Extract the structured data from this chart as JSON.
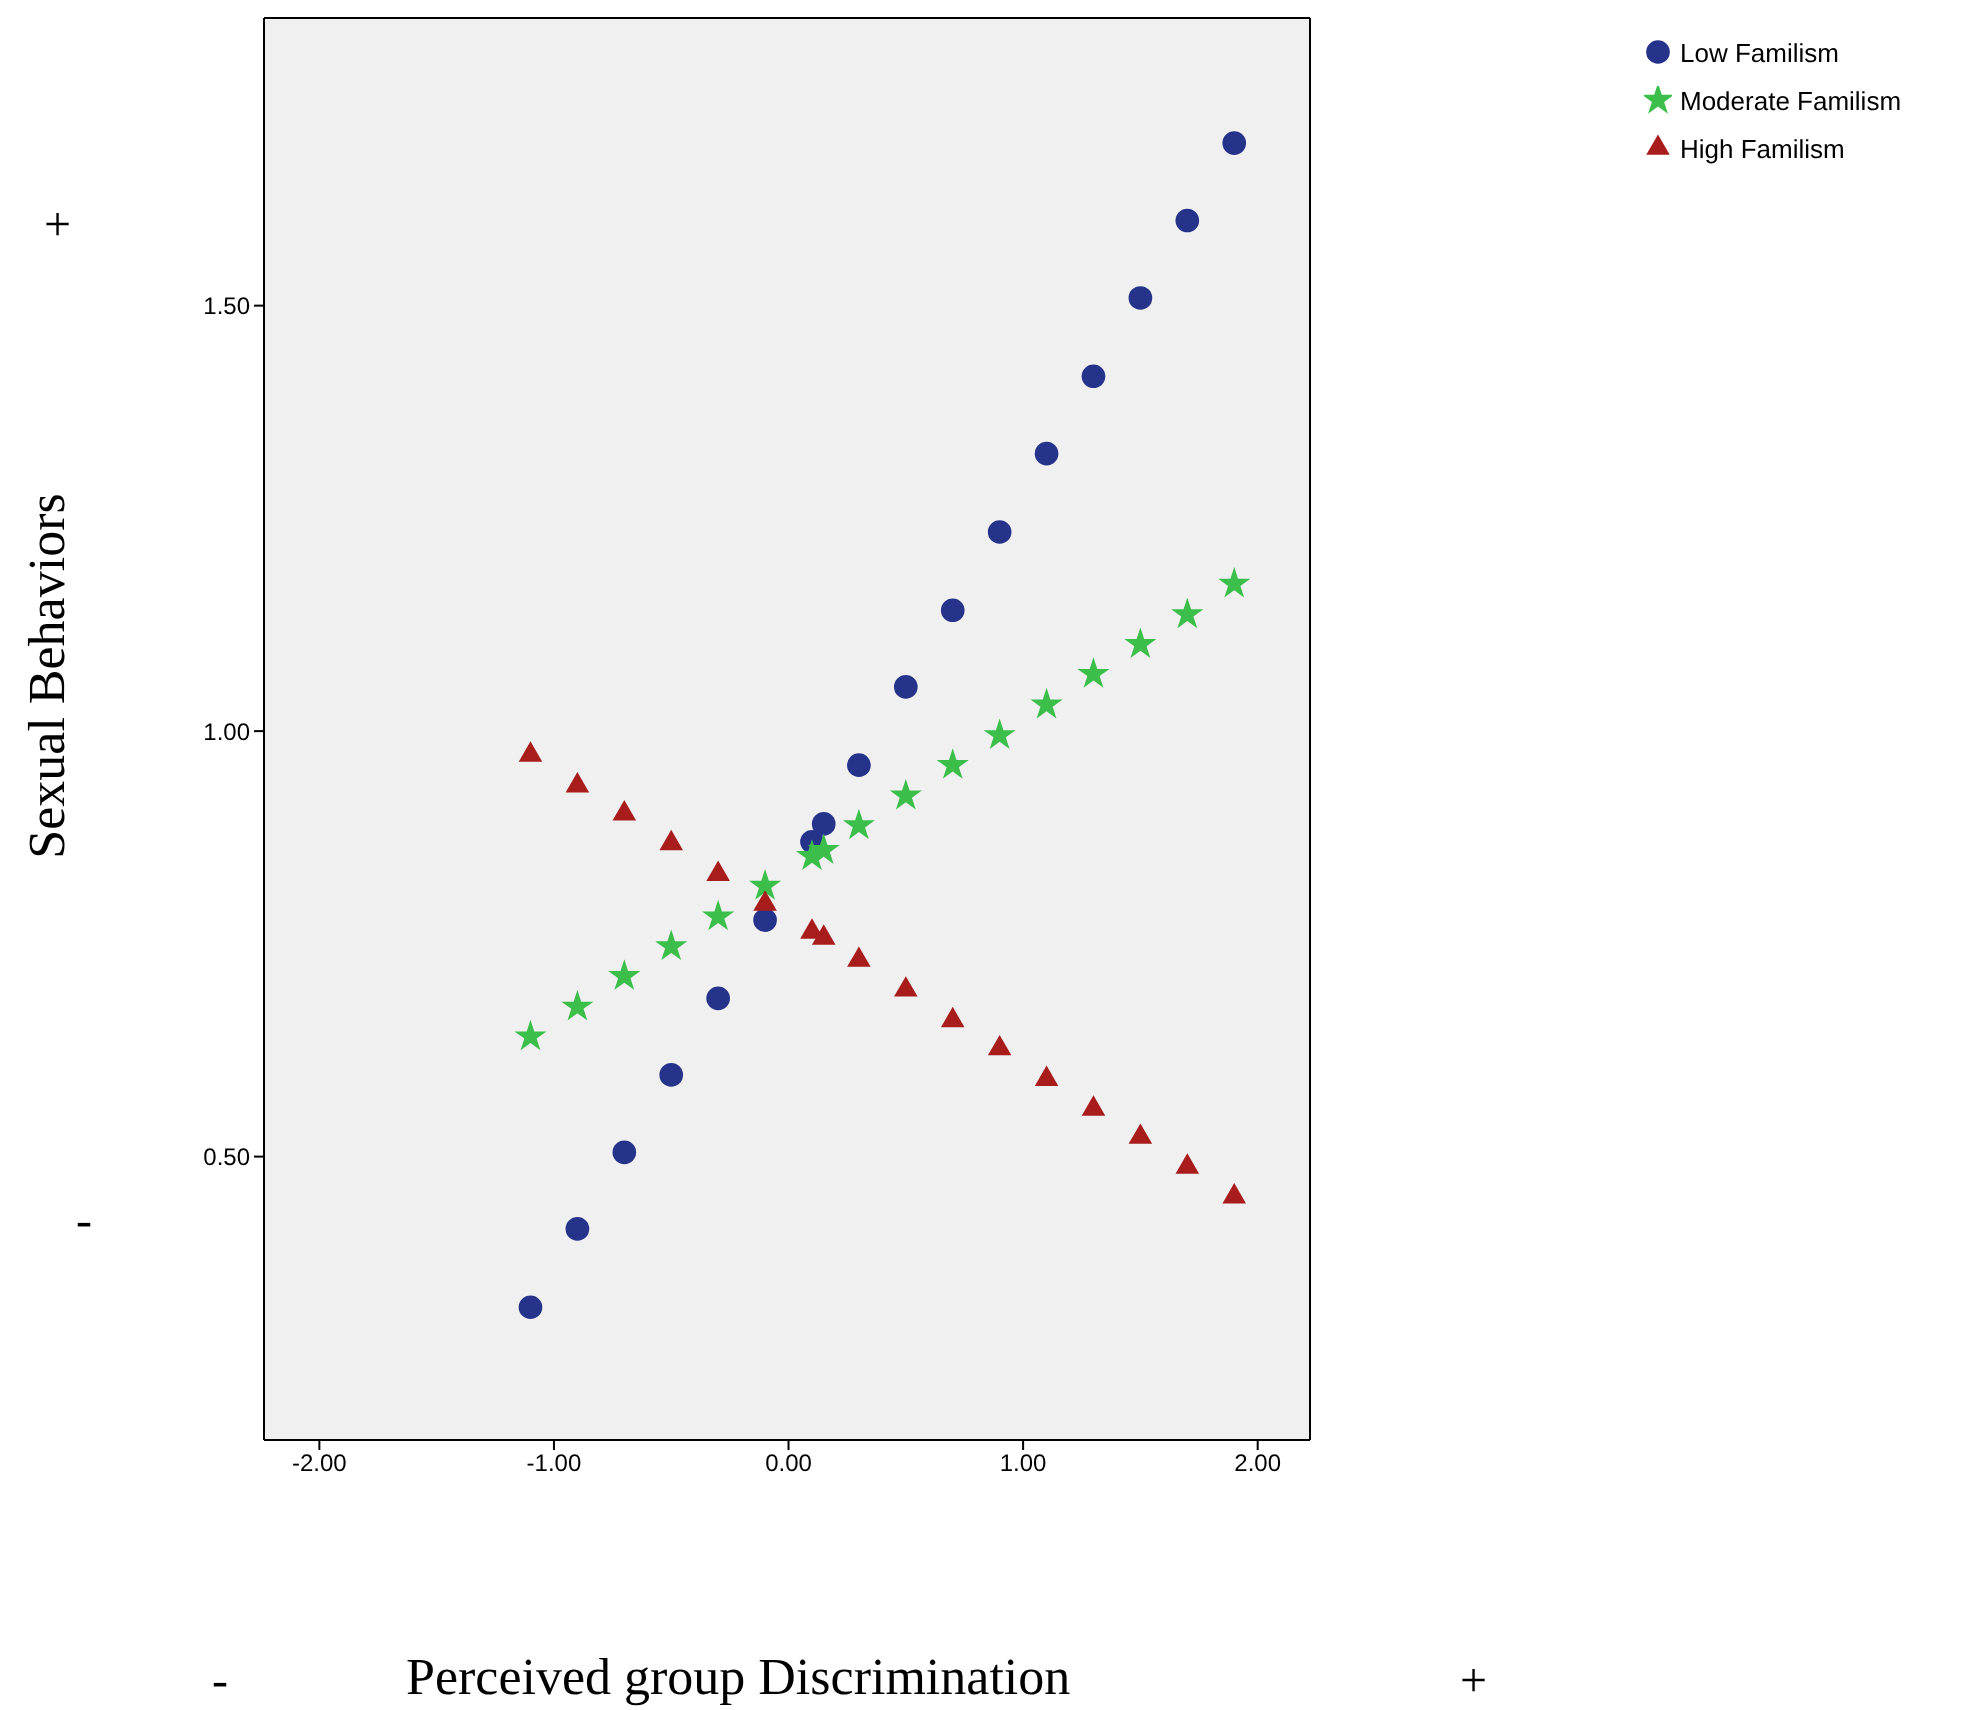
{
  "chart_data": {
    "type": "scatter",
    "xlabel": "Perceived group Discrimination",
    "ylabel": "Sexual Behaviors",
    "xlim": [
      -2.236,
      2.223
    ],
    "ylim": [
      0.167,
      1.838
    ],
    "xticks": [
      {
        "value": -2,
        "label": "-2.00"
      },
      {
        "value": -1,
        "label": "-1.00"
      },
      {
        "value": 0,
        "label": "0.00"
      },
      {
        "value": 1,
        "label": "1.00"
      },
      {
        "value": 2,
        "label": "2.00"
      }
    ],
    "yticks": [
      {
        "value": 0.5,
        "label": "0.50"
      },
      {
        "value": 1,
        "label": "1.00"
      },
      {
        "value": 1.5,
        "label": "1.50"
      }
    ],
    "x": [
      -1.1,
      -0.9,
      -0.7,
      -0.5,
      -0.3,
      -0.1,
      0.1,
      0.15,
      0.3,
      0.5,
      0.7,
      0.9,
      1.1,
      1.3,
      1.5,
      1.7,
      1.9
    ],
    "legend": "top right",
    "series": [
      {
        "name": "Low Familism",
        "color": "#26338a",
        "marker": "circle",
        "values": [
          0.323,
          0.415,
          0.505,
          0.596,
          0.686,
          0.778,
          0.87,
          0.891,
          0.96,
          1.052,
          1.142,
          1.234,
          1.326,
          1.417,
          1.509,
          1.6,
          1.691
        ]
      },
      {
        "name": "Moderate Familism",
        "color": "#3cbf4a",
        "marker": "star",
        "values": [
          0.641,
          0.676,
          0.712,
          0.747,
          0.782,
          0.818,
          0.853,
          0.86,
          0.889,
          0.924,
          0.96,
          0.995,
          1.031,
          1.067,
          1.102,
          1.137,
          1.173
        ]
      },
      {
        "name": "High Familism",
        "color": "#a81c1c",
        "marker": "triangle",
        "values": [
          0.972,
          0.936,
          0.903,
          0.868,
          0.832,
          0.797,
          0.764,
          0.757,
          0.731,
          0.696,
          0.66,
          0.627,
          0.591,
          0.556,
          0.523,
          0.488,
          0.453
        ]
      }
    ],
    "annotations": [
      "+",
      "-",
      "-",
      "+"
    ]
  }
}
